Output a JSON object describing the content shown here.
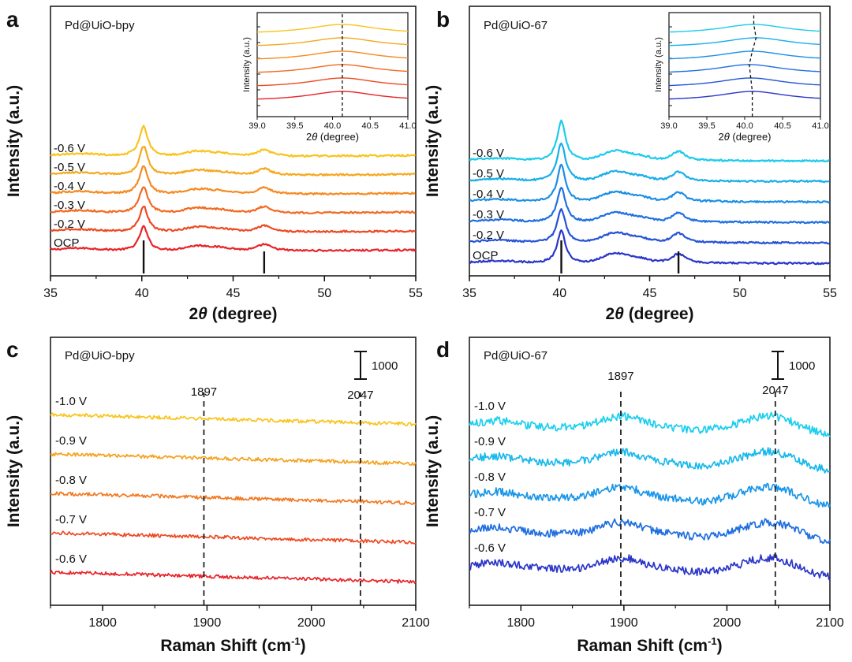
{
  "chart_data": [
    {
      "panel": "a",
      "type": "line",
      "sample": "Pd@UiO-bpy",
      "xlabel_pre": "2",
      "xlabel_theta": "θ",
      "xlabel_post": " (degree)",
      "ylabel": "Intensity (a.u.)",
      "xlim": [
        35,
        55
      ],
      "xticks": [
        "35",
        "40",
        "45",
        "50",
        "55"
      ],
      "peaks": [
        40.1,
        46.7
      ],
      "series": [
        {
          "name": "OCP",
          "color": "#e8242a"
        },
        {
          "name": "-0.2 V",
          "color": "#ee4a22"
        },
        {
          "name": "-0.3 V",
          "color": "#f26a22"
        },
        {
          "name": "-0.4 V",
          "color": "#f58a20"
        },
        {
          "name": "-0.5 V",
          "color": "#f6a81e"
        },
        {
          "name": "-0.6 V",
          "color": "#f8c41c"
        }
      ],
      "reference_ticks": [
        40.1,
        46.7
      ],
      "inset": {
        "xlim": [
          39.0,
          41.0
        ],
        "xticks": [
          "39.0",
          "39.5",
          "40.0",
          "40.5",
          "41.0"
        ],
        "xlabel_pre": "2",
        "xlabel_theta": "θ",
        "xlabel_post": " (degree)",
        "ylabel": "Intensity (a.u.)",
        "peak_center": 40.13,
        "guide_line": [
          40.13,
          40.13,
          40.13,
          40.13,
          40.13,
          40.13
        ]
      }
    },
    {
      "panel": "b",
      "type": "line",
      "sample": "Pd@UiO-67",
      "xlabel_pre": "2",
      "xlabel_theta": "θ",
      "xlabel_post": " (degree)",
      "ylabel": "Intensity (a.u.)",
      "xlim": [
        35,
        55
      ],
      "xticks": [
        "35",
        "40",
        "45",
        "50",
        "55"
      ],
      "peaks": [
        40.1,
        46.6
      ],
      "series": [
        {
          "name": "OCP",
          "color": "#2b35c8"
        },
        {
          "name": "-0.2 V",
          "color": "#2552d6"
        },
        {
          "name": "-0.3 V",
          "color": "#1f70e0"
        },
        {
          "name": "-0.4 V",
          "color": "#1a8ee6"
        },
        {
          "name": "-0.5 V",
          "color": "#18aeea"
        },
        {
          "name": "-0.6 V",
          "color": "#1ccbec"
        }
      ],
      "reference_ticks": [
        40.1,
        46.6
      ],
      "inset": {
        "xlim": [
          39.0,
          41.0
        ],
        "xticks": [
          "39.0",
          "39.5",
          "40.0",
          "40.5",
          "41.0"
        ],
        "xlabel_pre": "2",
        "xlabel_theta": "θ",
        "xlabel_post": " (degree)",
        "ylabel": "Intensity (a.u.)",
        "peak_center": 40.12,
        "guide_line": [
          40.1,
          40.08,
          40.06,
          40.1,
          40.15,
          40.12
        ]
      }
    },
    {
      "panel": "c",
      "type": "line",
      "sample": "Pd@UiO-bpy",
      "xlabel": "Raman Shift (cm",
      "xlabel_sup": "-1",
      "xlabel_end": ")",
      "ylabel": "Intensity (a.u.)",
      "xlim": [
        1750,
        2100
      ],
      "xticks": [
        "1800",
        "1900",
        "2000",
        "2100"
      ],
      "dashed_lines": [
        1897,
        2047
      ],
      "dashed_labels": [
        "1897",
        "2047"
      ],
      "scale_bar_label": "1000",
      "series": [
        {
          "name": "-0.6 V",
          "color": "#e8242a"
        },
        {
          "name": "-0.7 V",
          "color": "#ee4a22"
        },
        {
          "name": "-0.8 V",
          "color": "#f27a22"
        },
        {
          "name": "-0.9 V",
          "color": "#f5a21e"
        },
        {
          "name": "-1.0 V",
          "color": "#f8c41c"
        }
      ]
    },
    {
      "panel": "d",
      "type": "line",
      "sample": "Pd@UiO-67",
      "xlabel": "Raman Shift (cm",
      "xlabel_sup": "-1",
      "xlabel_end": ")",
      "ylabel": "Intensity (a.u.)",
      "xlim": [
        1750,
        2100
      ],
      "xticks": [
        "1800",
        "1900",
        "2000",
        "2100"
      ],
      "dashed_lines": [
        1897,
        2047
      ],
      "dashed_labels": [
        "1897",
        "2047"
      ],
      "scale_bar_label": "1000",
      "series": [
        {
          "name": "-0.6 V",
          "color": "#2b35c8"
        },
        {
          "name": "-0.7 V",
          "color": "#1f6ee0"
        },
        {
          "name": "-0.8 V",
          "color": "#1a96e8"
        },
        {
          "name": "-0.9 V",
          "color": "#19b8ec"
        },
        {
          "name": "-1.0 V",
          "color": "#1ccfee"
        }
      ]
    }
  ]
}
